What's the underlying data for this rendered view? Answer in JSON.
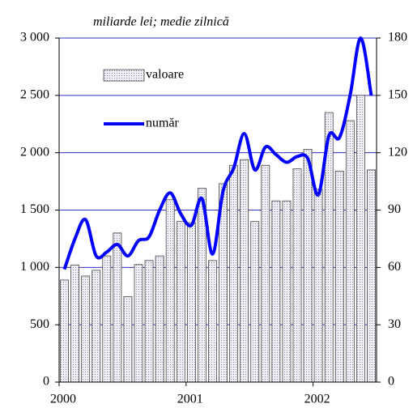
{
  "chart_data": {
    "type": "bar_line",
    "subtitle": "miliarde lei; medie zilnică",
    "categories": [
      "2000",
      null,
      null,
      null,
      null,
      null,
      null,
      null,
      null,
      null,
      null,
      null,
      "2001",
      null,
      null,
      null,
      null,
      null,
      null,
      null,
      null,
      null,
      null,
      null,
      "2002",
      null,
      null,
      null,
      null,
      null
    ],
    "series": [
      {
        "name": "valoare",
        "type": "bar",
        "color": "#d8d8e4",
        "values": [
          890,
          1020,
          925,
          975,
          1100,
          1300,
          745,
          1025,
          1060,
          1100,
          1590,
          1400,
          1390,
          1690,
          1060,
          1730,
          1890,
          1940,
          1400,
          1890,
          1580,
          1580,
          1860,
          2030,
          1680,
          2350,
          1840,
          2280,
          2500,
          1850
        ]
      },
      {
        "name": "număr",
        "type": "line",
        "axis": "y2",
        "color": "#0000ff",
        "values": [
          59,
          75,
          85,
          66,
          68,
          72,
          66,
          74,
          76,
          90,
          99,
          88,
          82,
          96,
          67,
          100,
          112,
          130,
          111,
          123,
          119,
          115,
          118,
          117,
          98,
          129,
          128,
          150,
          180,
          150
        ]
      }
    ],
    "ylim": [
      0,
      3000
    ],
    "yticks": [
      0,
      500,
      {
        "value": 1000,
        "label": "1 000"
      },
      {
        "value": 1500,
        "label": "1 500"
      },
      {
        "value": 2000,
        "label": "2 000"
      },
      {
        "value": 2500,
        "label": "2 500"
      },
      {
        "value": 3000,
        "label": "3 000"
      }
    ],
    "y2lim": [
      0,
      180
    ],
    "y2ticks": [
      0,
      30,
      60,
      90,
      120,
      150,
      180
    ],
    "grid": true,
    "grid_color": "#3030c0"
  }
}
